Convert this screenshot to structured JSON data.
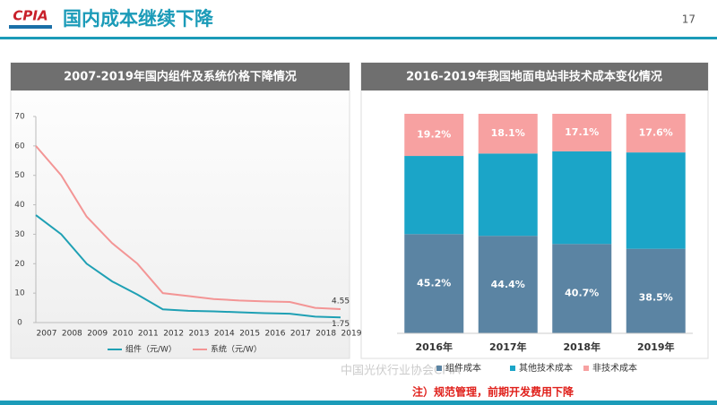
{
  "header": {
    "logo": "CPIA",
    "title": "国内成本继续下降",
    "page": "17"
  },
  "note": "注）规范管理，前期开发费用下降",
  "watermark": "中国光伏行业协会CPIA",
  "chart_data": [
    {
      "type": "line",
      "title": "2007-2019年国内组件及系统价格下降情况",
      "categories": [
        "2007",
        "2008",
        "2009",
        "2010",
        "2011",
        "2012",
        "2013",
        "2014",
        "2015",
        "2016",
        "2017",
        "2018",
        "2019"
      ],
      "series": [
        {
          "name": "组件（元/W）",
          "color": "#1fa0b4",
          "values": [
            36.5,
            30,
            20,
            14,
            9.5,
            4.5,
            4,
            3.8,
            3.5,
            3.2,
            3,
            2,
            1.75
          ]
        },
        {
          "name": "系统（元/W）",
          "color": "#f39595",
          "values": [
            60,
            50,
            36,
            27,
            20,
            10,
            9,
            8,
            7.5,
            7.2,
            7,
            5,
            4.55
          ]
        }
      ],
      "ylim": [
        0,
        70
      ],
      "yticks": [
        0,
        10,
        20,
        30,
        40,
        50,
        60,
        70
      ]
    },
    {
      "type": "stacked-bar",
      "title": "2016-2019年我国地面电站非技术成本变化情况",
      "categories": [
        "2016年",
        "2017年",
        "2018年",
        "2019年"
      ],
      "series": [
        {
          "name": "组件成本",
          "color": "#5b84a3",
          "values": [
            45.2,
            44.4,
            40.7,
            38.5
          ],
          "value_labels": [
            "45.2%",
            "44.4%",
            "40.7%",
            "38.5%"
          ]
        },
        {
          "name": "其他技术成本",
          "color": "#1ba5c8",
          "values": [
            35.6,
            37.5,
            42.2,
            43.9
          ]
        },
        {
          "name": "非技术成本",
          "color": "#f7a1a1",
          "values": [
            19.2,
            18.1,
            17.1,
            17.6
          ],
          "value_labels": [
            "19.2%",
            "18.1%",
            "17.1%",
            "17.6%"
          ]
        }
      ],
      "ylim": [
        0,
        100
      ]
    }
  ]
}
